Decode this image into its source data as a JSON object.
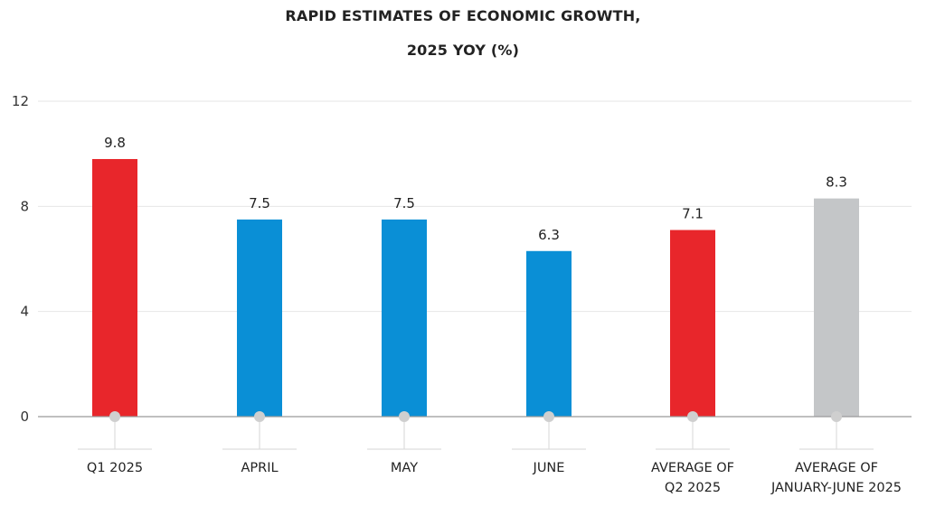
{
  "chart_data": {
    "type": "bar",
    "title_lines": [
      "RAPID ESTIMATES OF ECONOMIC GROWTH,",
      "2025 YOY (%)"
    ],
    "xlabel": "",
    "ylabel": "",
    "ylim": [
      0,
      12
    ],
    "yticks": [
      0,
      4,
      8,
      12
    ],
    "grid": true,
    "categories": [
      [
        "Q1 2025"
      ],
      [
        "APRIL"
      ],
      [
        "MAY"
      ],
      [
        "JUNE"
      ],
      [
        "AVERAGE OF",
        "Q2 2025"
      ],
      [
        "AVERAGE OF",
        "JANUARY-JUNE 2025"
      ]
    ],
    "values": [
      9.8,
      7.5,
      7.5,
      6.3,
      7.1,
      8.3
    ],
    "value_labels": [
      "9.8",
      "7.5",
      "7.5",
      "6.3",
      "7.1",
      "8.3"
    ],
    "colors": [
      "#e8262b",
      "#0a8fd6",
      "#0a8fd6",
      "#0a8fd6",
      "#e8262b",
      "#c4c6c8"
    ],
    "grid_color": "#e6e6e6",
    "axis_color": "#9a9a9a",
    "marker_color": "#cfcfcf"
  }
}
